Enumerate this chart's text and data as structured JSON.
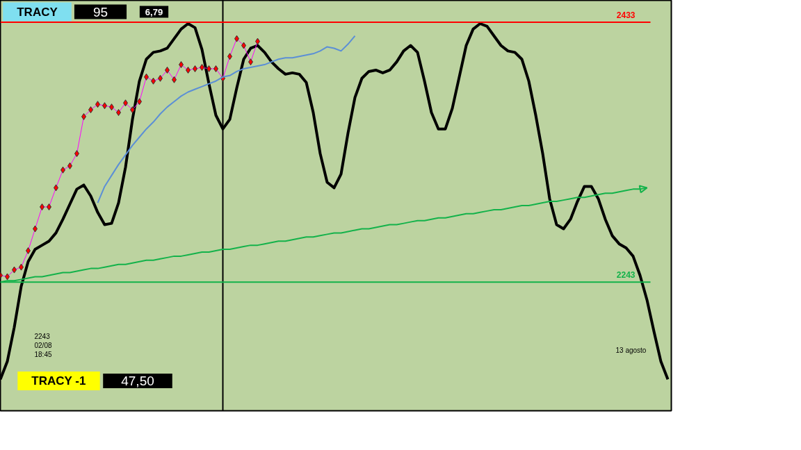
{
  "chart_data": {
    "type": "line",
    "categories": [
      null,
      null,
      null,
      null,
      null,
      null,
      null,
      null,
      null,
      null,
      null,
      null,
      null,
      null,
      null,
      null,
      null,
      null,
      null,
      null,
      null,
      null,
      null,
      null,
      null,
      null,
      null,
      null,
      null,
      null,
      null,
      null,
      null,
      null,
      null,
      null,
      null,
      null,
      null,
      null,
      null,
      null,
      null,
      null,
      null,
      null,
      null,
      null,
      null,
      null,
      null,
      null,
      null,
      null,
      null,
      null,
      null,
      null,
      null,
      null,
      null,
      null,
      null,
      null,
      null,
      null,
      null,
      null,
      null,
      null,
      null,
      null,
      null,
      null,
      null,
      null,
      null,
      null,
      null,
      null,
      null,
      null,
      null,
      null,
      null,
      null,
      null,
      null,
      null,
      null,
      null,
      null,
      null,
      null,
      null,
      null,
      null
    ],
    "ylim": [
      2149,
      2449
    ],
    "tick_labels": false,
    "grid": false,
    "series": [
      {
        "color": "#000000",
        "values": [
          2172,
          2185,
          2210,
          2240,
          2258,
          2267,
          2270,
          2273,
          2279,
          2289,
          2300,
          2311,
          2314,
          2306,
          2294,
          2285,
          2286,
          2301,
          2327,
          2362,
          2390,
          2406,
          2411,
          2412,
          2414,
          2421,
          2428,
          2432,
          2429,
          2413,
          2388,
          2365,
          2355,
          2362,
          2385,
          2406,
          2414,
          2416,
          2411,
          2404,
          2399,
          2395,
          2396,
          2395,
          2389,
          2367,
          2337,
          2316,
          2312,
          2322,
          2352,
          2378,
          2392,
          2397,
          2398,
          2396,
          2398,
          2404,
          2412,
          2416,
          2411,
          2390,
          2367,
          2355,
          2355,
          2370,
          2393,
          2416,
          2428,
          2432,
          2430,
          2423,
          2416,
          2412,
          2411,
          2406,
          2390,
          2365,
          2337,
          2304,
          2285,
          2282,
          2289,
          2302,
          2313,
          2313,
          2304,
          2289,
          2277,
          2271,
          2268,
          2262,
          2248,
          2230,
          2207,
          2185,
          2172
        ]
      },
      {
        "color": "#ff0000",
        "marker": "diamond",
        "values": [
          2248,
          2247,
          2252,
          2254,
          2266,
          2282,
          2298,
          2298,
          2312,
          2325,
          2328,
          2337,
          2364,
          2369,
          2373,
          2372,
          2371,
          2367,
          2374,
          2369,
          2375,
          2393,
          2390,
          2392,
          2398,
          2391,
          2402,
          2398,
          2399,
          2400,
          2399,
          2399,
          2392,
          2408,
          2421,
          2416,
          2404,
          2419,
          null,
          null,
          null,
          null,
          null,
          null,
          null,
          null,
          null,
          null,
          null,
          null,
          null,
          null,
          null,
          null,
          null,
          null,
          null,
          null,
          null,
          null,
          null,
          null,
          null,
          null,
          null,
          null,
          null,
          null,
          null,
          null,
          null,
          null,
          null,
          null,
          null,
          null,
          null,
          null,
          null,
          null,
          null,
          null,
          null,
          null,
          null,
          null,
          null,
          null,
          null,
          null,
          null,
          null,
          null,
          null,
          null,
          null,
          null
        ]
      },
      {
        "color": "#5b8fd6",
        "values": [
          null,
          null,
          null,
          null,
          null,
          null,
          null,
          null,
          null,
          null,
          null,
          null,
          null,
          null,
          2301,
          2313,
          2321,
          2329,
          2336,
          2343,
          2349,
          2355,
          2360,
          2366,
          2371,
          2375,
          2379,
          2382,
          2384,
          2386,
          2388,
          2390,
          2393,
          2394,
          2397,
          2399,
          2400,
          2401,
          2402,
          2404,
          2406,
          2407,
          2407,
          2408,
          2409,
          2410,
          2412,
          2415,
          2414,
          2412,
          2417,
          2423,
          null,
          null,
          null,
          null,
          null,
          null,
          null,
          null,
          null,
          null,
          null,
          null,
          null,
          null,
          null,
          null,
          null,
          null,
          null,
          null,
          null,
          null,
          null,
          null,
          null,
          null,
          null,
          null,
          null,
          null,
          null,
          null,
          null,
          null,
          null,
          null,
          null,
          null,
          null,
          null,
          null,
          null,
          null,
          null,
          null
        ]
      },
      {
        "color": "#13b24a",
        "values": [
          2243,
          2244,
          2244,
          2245,
          2246,
          2247,
          2247,
          2248,
          2249,
          2250,
          2250,
          2251,
          2252,
          2253,
          2253,
          2254,
          2255,
          2256,
          2256,
          2257,
          2258,
          2259,
          2259,
          2260,
          2261,
          2262,
          2262,
          2263,
          2264,
          2265,
          2265,
          2266,
          2267,
          2267,
          2268,
          2269,
          2270,
          2270,
          2271,
          2272,
          2273,
          2273,
          2274,
          2275,
          2276,
          2276,
          2277,
          2278,
          2279,
          2279,
          2280,
          2281,
          2282,
          2282,
          2283,
          2284,
          2285,
          2285,
          2286,
          2287,
          2288,
          2288,
          2289,
          2290,
          2290,
          2291,
          2292,
          2293,
          2293,
          2294,
          2295,
          2296,
          2296,
          2297,
          2298,
          2299,
          2299,
          2300,
          2301,
          2302,
          2302,
          2303,
          2304,
          2305,
          2305,
          2306,
          2307,
          2308,
          2308,
          2309,
          2310,
          2311,
          2311,
          2312,
          null,
          null,
          null
        ]
      }
    ],
    "ref_lines": [
      {
        "axis": "y",
        "value": 2433,
        "label": "2433",
        "color": "#ff0000"
      },
      {
        "axis": "y",
        "value": 2243,
        "label": "2243",
        "color": "#13b24a"
      }
    ],
    "annotations": [
      "TRACY",
      "95",
      "6,79",
      "TRACY -1",
      "47,50",
      "2243\n02/08\n18:45",
      "13 agosto"
    ]
  }
}
